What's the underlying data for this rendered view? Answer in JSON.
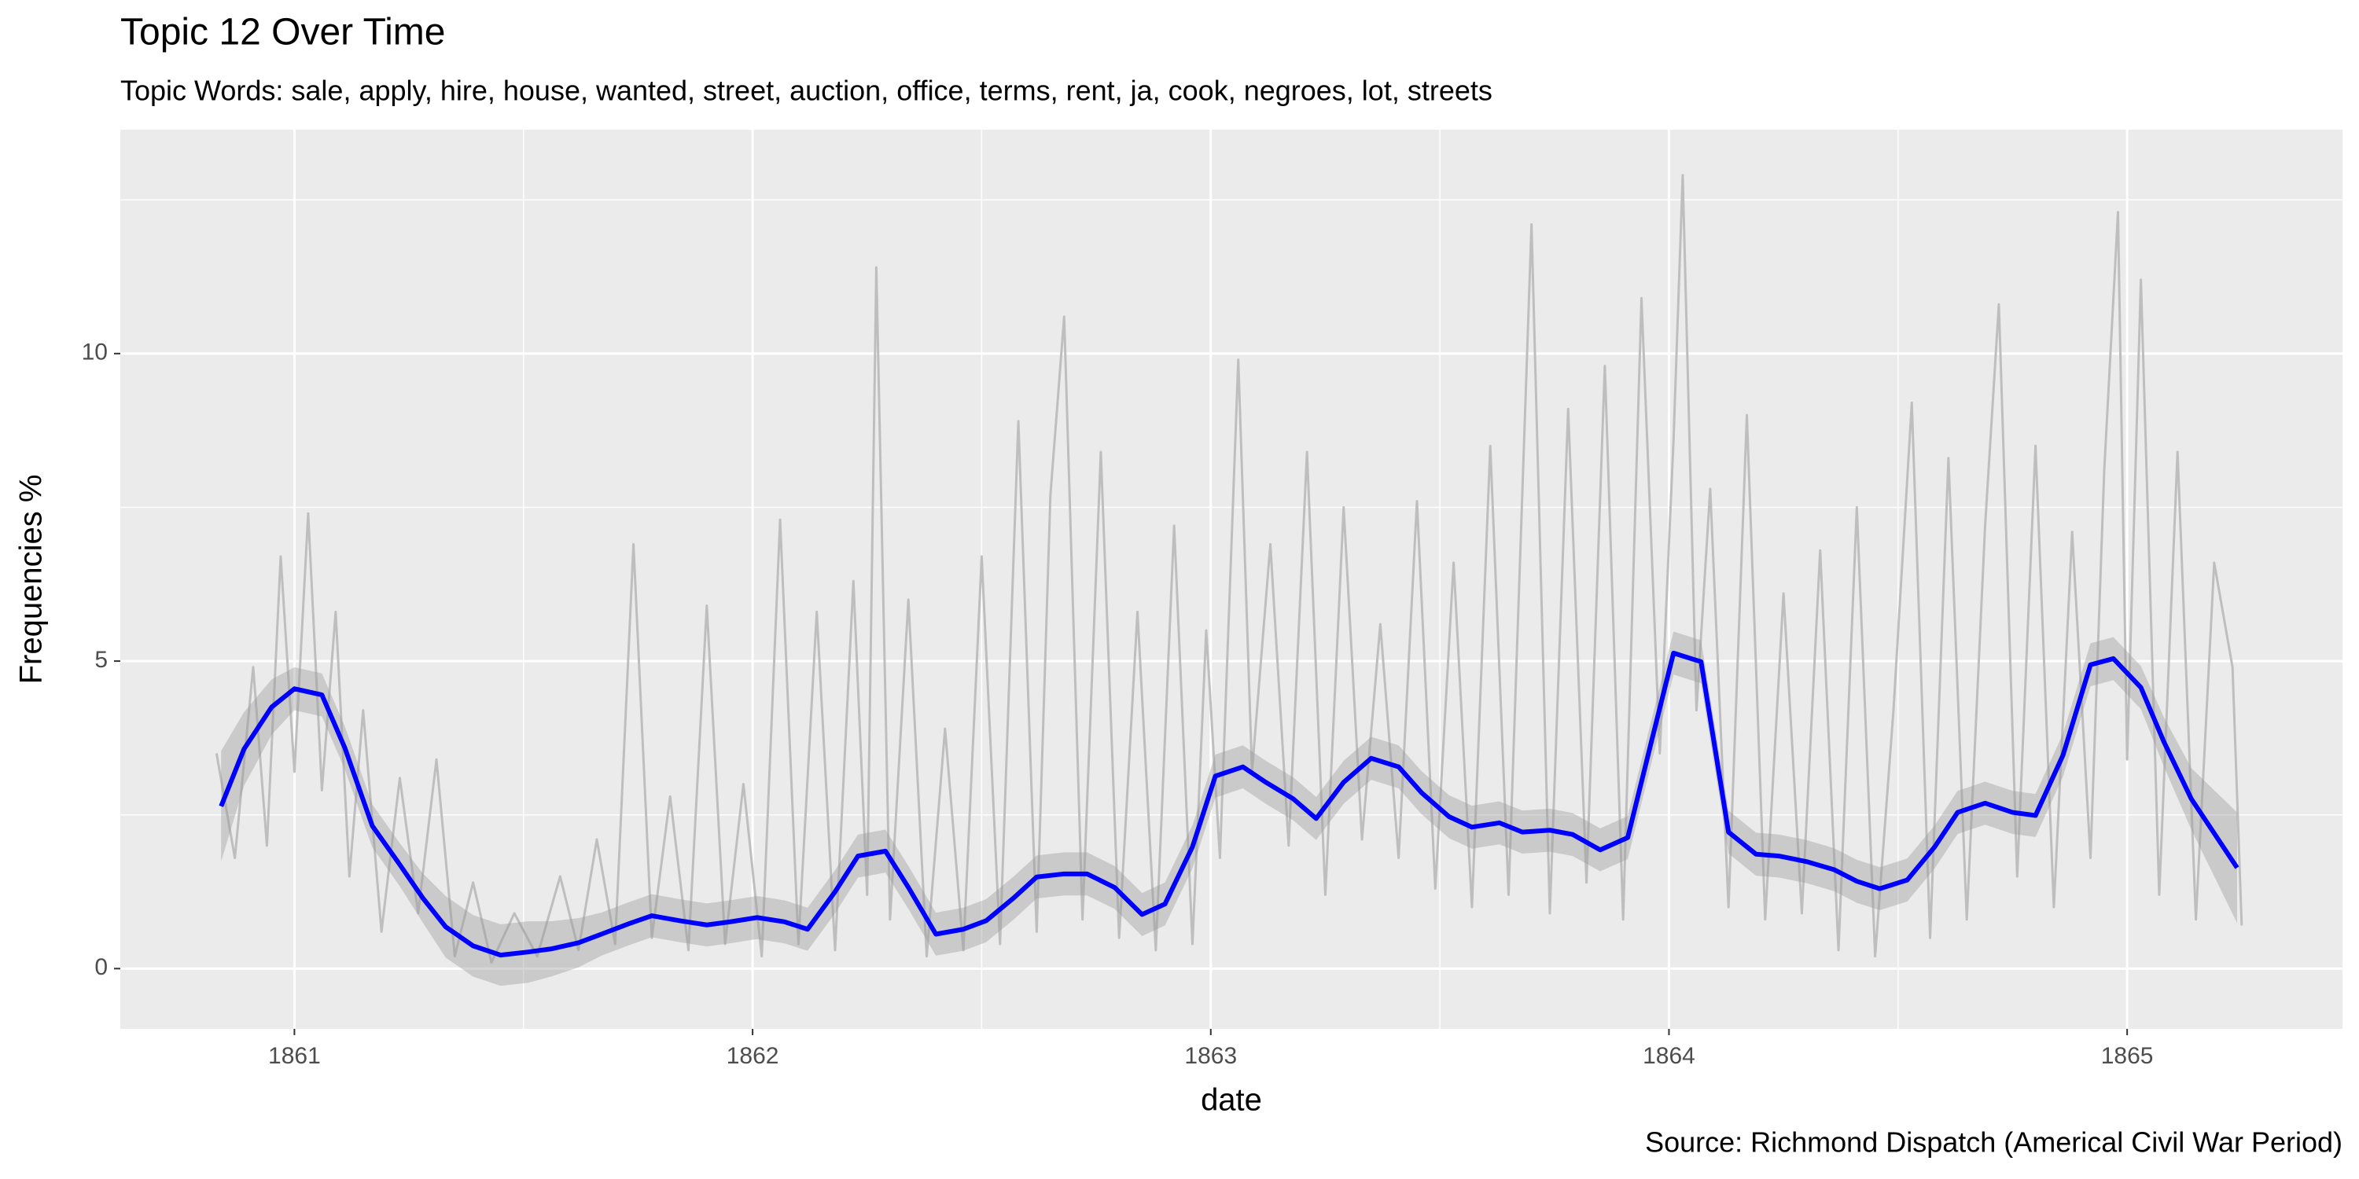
{
  "chart_data": {
    "type": "line",
    "title": "Topic 12 Over Time",
    "subtitle": "Topic Words: sale, apply, hire, house, wanted, street, auction, office, terms, rent, ja, cook, negroes, lot, streets",
    "xlabel": "date",
    "ylabel": "Frequencies %",
    "caption": "Source: Richmond Dispatch (Americal Civil War Period)",
    "xlim": [
      1860.62,
      1865.47
    ],
    "ylim": [
      -0.98,
      13.64
    ],
    "xticks": [
      1861,
      1862,
      1863,
      1864,
      1865
    ],
    "yticks": [
      0,
      5,
      10
    ],
    "x_minor_ticks": [
      1861.5,
      1862.5,
      1863.5,
      1864.5
    ],
    "y_minor_ticks": [
      2.5,
      7.5,
      12.5
    ],
    "grid": true,
    "background": "#ebebeb",
    "series": [
      {
        "color": "#bebebe",
        "x": [
          1860.83,
          1860.87,
          1860.91,
          1860.94,
          1860.97,
          1861.0,
          1861.03,
          1861.06,
          1861.09,
          1861.12,
          1861.15,
          1861.19,
          1861.23,
          1861.27,
          1861.31,
          1861.35,
          1861.39,
          1861.43,
          1861.48,
          1861.53,
          1861.58,
          1861.62,
          1861.66,
          1861.7,
          1861.74,
          1861.78,
          1861.82,
          1861.86,
          1861.9,
          1861.94,
          1861.98,
          1862.02,
          1862.06,
          1862.1,
          1862.14,
          1862.18,
          1862.22,
          1862.25,
          1862.27,
          1862.3,
          1862.34,
          1862.38,
          1862.42,
          1862.46,
          1862.5,
          1862.54,
          1862.58,
          1862.62,
          1862.65,
          1862.68,
          1862.72,
          1862.76,
          1862.8,
          1862.84,
          1862.88,
          1862.92,
          1862.96,
          1862.99,
          1863.02,
          1863.06,
          1863.09,
          1863.13,
          1863.17,
          1863.21,
          1863.25,
          1863.29,
          1863.33,
          1863.37,
          1863.41,
          1863.45,
          1863.49,
          1863.53,
          1863.57,
          1863.61,
          1863.65,
          1863.7,
          1863.74,
          1863.78,
          1863.82,
          1863.86,
          1863.9,
          1863.94,
          1863.98,
          1864.01,
          1864.03,
          1864.06,
          1864.09,
          1864.13,
          1864.17,
          1864.21,
          1864.25,
          1864.29,
          1864.33,
          1864.37,
          1864.41,
          1864.45,
          1864.49,
          1864.53,
          1864.57,
          1864.61,
          1864.65,
          1864.69,
          1864.72,
          1864.76,
          1864.8,
          1864.84,
          1864.88,
          1864.92,
          1864.95,
          1864.98,
          1865.0,
          1865.03,
          1865.07,
          1865.11,
          1865.15,
          1865.19,
          1865.23,
          1865.25
        ],
        "values": [
          3.5,
          1.8,
          4.9,
          2.0,
          6.7,
          3.2,
          7.4,
          2.9,
          5.8,
          1.5,
          4.2,
          0.6,
          3.1,
          0.9,
          3.4,
          0.2,
          1.4,
          0.1,
          0.9,
          0.2,
          1.5,
          0.3,
          2.1,
          0.4,
          6.9,
          0.5,
          2.8,
          0.3,
          5.9,
          0.4,
          3.0,
          0.2,
          7.3,
          0.4,
          5.8,
          0.3,
          6.3,
          1.2,
          11.4,
          0.8,
          6.0,
          0.2,
          3.9,
          0.3,
          6.7,
          0.4,
          8.9,
          0.6,
          7.7,
          10.6,
          0.8,
          8.4,
          0.5,
          5.8,
          0.3,
          7.2,
          0.4,
          5.5,
          1.8,
          9.9,
          3.2,
          6.9,
          2.0,
          8.4,
          1.2,
          7.5,
          2.1,
          5.6,
          1.8,
          7.6,
          1.3,
          6.6,
          1.0,
          8.5,
          1.2,
          12.1,
          0.9,
          9.1,
          1.4,
          9.8,
          0.8,
          10.9,
          3.5,
          8.6,
          12.9,
          4.2,
          7.8,
          1.0,
          9.0,
          0.8,
          6.1,
          0.9,
          6.8,
          0.3,
          7.5,
          0.2,
          4.2,
          9.2,
          0.5,
          8.3,
          0.8,
          7.2,
          10.8,
          1.5,
          8.5,
          1.0,
          7.1,
          1.8,
          8.1,
          12.3,
          3.4,
          11.2,
          1.2,
          8.4,
          0.8,
          6.6,
          4.9,
          0.7
        ]
      },
      {
        "color": "#0000ff",
        "x": [
          1860.84,
          1860.89,
          1860.95,
          1861.0,
          1861.06,
          1861.11,
          1861.17,
          1861.23,
          1861.28,
          1861.33,
          1861.39,
          1861.45,
          1861.51,
          1861.56,
          1861.62,
          1861.67,
          1861.73,
          1861.78,
          1861.84,
          1861.9,
          1861.95,
          1862.01,
          1862.07,
          1862.12,
          1862.18,
          1862.23,
          1862.29,
          1862.34,
          1862.4,
          1862.46,
          1862.51,
          1862.57,
          1862.62,
          1862.68,
          1862.73,
          1862.79,
          1862.85,
          1862.9,
          1862.96,
          1863.01,
          1863.07,
          1863.12,
          1863.18,
          1863.23,
          1863.29,
          1863.35,
          1863.41,
          1863.46,
          1863.52,
          1863.57,
          1863.63,
          1863.68,
          1863.74,
          1863.79,
          1863.85,
          1863.91,
          1863.96,
          1864.01,
          1864.07,
          1864.13,
          1864.19,
          1864.24,
          1864.3,
          1864.36,
          1864.41,
          1864.46,
          1864.52,
          1864.58,
          1864.63,
          1864.69,
          1864.75,
          1864.8,
          1864.86,
          1864.92,
          1864.97,
          1865.03,
          1865.08,
          1865.14,
          1865.24
        ],
        "values": [
          2.64,
          3.57,
          4.25,
          4.55,
          4.45,
          3.59,
          2.32,
          1.69,
          1.15,
          0.68,
          0.37,
          0.22,
          0.27,
          0.32,
          0.42,
          0.56,
          0.73,
          0.86,
          0.78,
          0.71,
          0.76,
          0.83,
          0.76,
          0.64,
          1.25,
          1.83,
          1.91,
          1.32,
          0.56,
          0.64,
          0.78,
          1.15,
          1.49,
          1.54,
          1.54,
          1.32,
          0.88,
          1.05,
          1.98,
          3.13,
          3.28,
          3.03,
          2.76,
          2.44,
          3.03,
          3.42,
          3.28,
          2.86,
          2.47,
          2.3,
          2.37,
          2.22,
          2.25,
          2.18,
          1.93,
          2.13,
          3.64,
          5.13,
          4.99,
          2.22,
          1.86,
          1.83,
          1.74,
          1.61,
          1.42,
          1.3,
          1.44,
          1.98,
          2.54,
          2.69,
          2.54,
          2.49,
          3.47,
          4.94,
          5.04,
          4.57,
          3.69,
          2.76,
          1.64
        ],
        "band_color": "#999999",
        "lower": [
          1.74,
          2.97,
          3.8,
          4.2,
          4.1,
          3.24,
          1.97,
          1.34,
          0.75,
          0.18,
          -0.13,
          -0.28,
          -0.23,
          -0.13,
          0.02,
          0.21,
          0.38,
          0.51,
          0.43,
          0.36,
          0.41,
          0.48,
          0.41,
          0.29,
          0.9,
          1.48,
          1.56,
          0.97,
          0.21,
          0.29,
          0.43,
          0.8,
          1.14,
          1.19,
          1.19,
          0.97,
          0.53,
          0.7,
          1.63,
          2.78,
          2.93,
          2.68,
          2.41,
          2.09,
          2.68,
          3.07,
          2.93,
          2.51,
          2.12,
          1.95,
          2.02,
          1.87,
          1.9,
          1.83,
          1.58,
          1.78,
          3.29,
          4.78,
          4.64,
          1.87,
          1.51,
          1.48,
          1.39,
          1.26,
          1.07,
          0.95,
          1.09,
          1.63,
          2.19,
          2.34,
          2.19,
          2.14,
          3.12,
          4.59,
          4.69,
          4.22,
          3.29,
          2.26,
          0.74
        ],
        "upper": [
          3.54,
          4.17,
          4.7,
          4.9,
          4.8,
          3.94,
          2.67,
          2.04,
          1.55,
          1.18,
          0.87,
          0.72,
          0.77,
          0.77,
          0.82,
          0.91,
          1.08,
          1.21,
          1.13,
          1.06,
          1.11,
          1.18,
          1.11,
          0.99,
          1.6,
          2.18,
          2.26,
          1.67,
          0.91,
          0.99,
          1.13,
          1.5,
          1.84,
          1.89,
          1.89,
          1.67,
          1.23,
          1.4,
          2.33,
          3.48,
          3.63,
          3.38,
          3.11,
          2.79,
          3.38,
          3.77,
          3.63,
          3.21,
          2.82,
          2.65,
          2.72,
          2.57,
          2.6,
          2.53,
          2.28,
          2.48,
          3.99,
          5.48,
          5.34,
          2.57,
          2.21,
          2.18,
          2.09,
          1.96,
          1.77,
          1.65,
          1.79,
          2.33,
          2.89,
          3.04,
          2.89,
          2.84,
          3.82,
          5.29,
          5.39,
          4.92,
          4.09,
          3.26,
          2.54
        ]
      }
    ]
  }
}
